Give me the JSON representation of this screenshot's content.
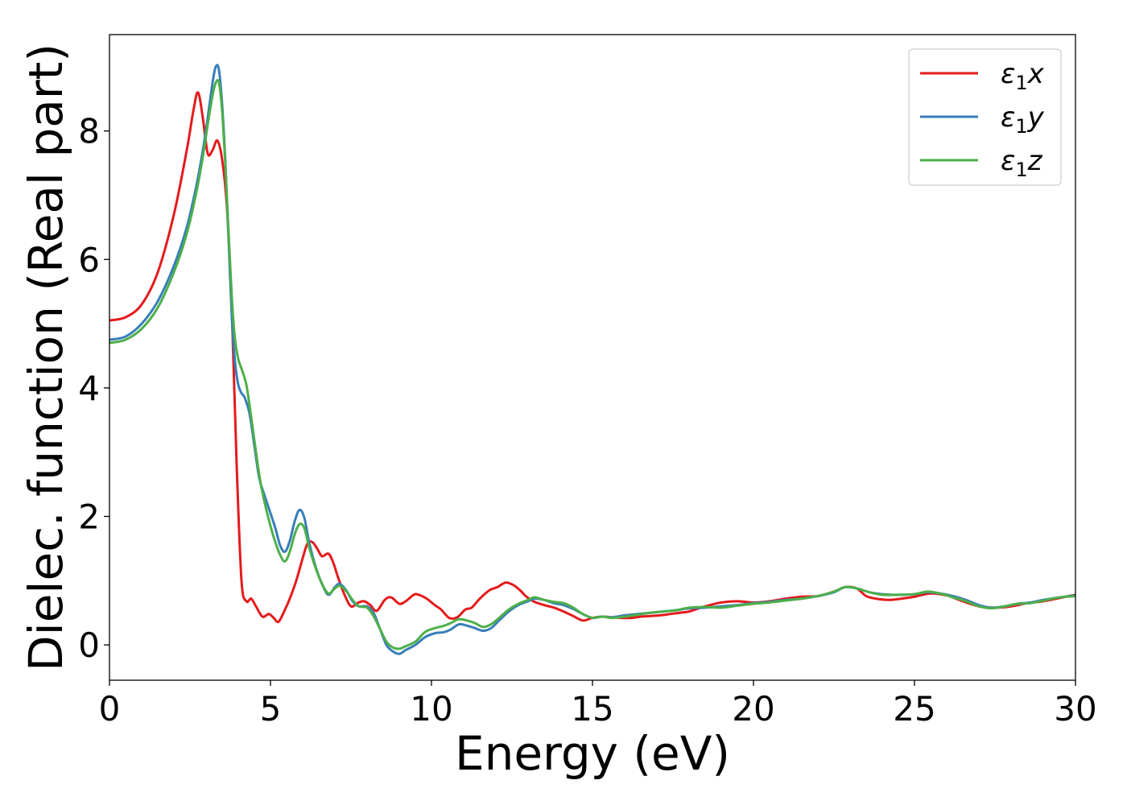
{
  "chart_data": {
    "type": "line",
    "xlabel": "Energy (eV)",
    "ylabel": "Dielec. function (Real part)",
    "xlim": [
      0,
      30
    ],
    "ylim": [
      -0.55,
      9.5
    ],
    "xticks": [
      0,
      5,
      10,
      15,
      20,
      25,
      30
    ],
    "yticks": [
      0,
      2,
      4,
      6,
      8
    ],
    "xtick_labels": [
      "0",
      "5",
      "10",
      "15",
      "20",
      "25",
      "30"
    ],
    "ytick_labels": [
      "0",
      "2",
      "4",
      "6",
      "8"
    ],
    "grid": false,
    "legend_position": "top-right",
    "series": [
      {
        "name": "ε1x",
        "label_base": "ε",
        "label_sub": "1",
        "label_suffix": "x",
        "color": "#e41a1c",
        "x": [
          0,
          0.5,
          1.0,
          1.5,
          2.0,
          2.4,
          2.6,
          2.75,
          2.9,
          3.05,
          3.2,
          3.35,
          3.5,
          3.65,
          3.8,
          3.95,
          4.1,
          4.25,
          4.4,
          4.55,
          4.75,
          4.95,
          5.1,
          5.25,
          5.45,
          5.6,
          5.8,
          6.0,
          6.15,
          6.3,
          6.45,
          6.6,
          6.8,
          6.95,
          7.1,
          7.3,
          7.5,
          7.7,
          7.9,
          8.1,
          8.3,
          8.55,
          8.75,
          9.0,
          9.2,
          9.45,
          9.6,
          9.85,
          10.1,
          10.3,
          10.55,
          10.8,
          11.05,
          11.25,
          11.5,
          11.8,
          12.05,
          12.3,
          12.55,
          12.75,
          12.95,
          13.2,
          13.5,
          13.8,
          14.1,
          14.4,
          14.7,
          15.0,
          15.3,
          15.6,
          15.9,
          16.2,
          16.5,
          16.8,
          17.1,
          17.4,
          17.7,
          18.0,
          18.5,
          19.0,
          19.5,
          20.0,
          20.5,
          21.0,
          21.5,
          22.0,
          22.5,
          22.85,
          23.2,
          23.5,
          23.8,
          24.2,
          24.6,
          25.0,
          25.5,
          26.0,
          26.5,
          27.0,
          27.5,
          28.0,
          28.5,
          29.0,
          29.5,
          30.0
        ],
        "y": [
          5.05,
          5.1,
          5.3,
          5.8,
          6.7,
          7.7,
          8.3,
          8.6,
          8.2,
          7.65,
          7.7,
          7.85,
          7.55,
          6.8,
          5.2,
          2.8,
          1.0,
          0.68,
          0.72,
          0.6,
          0.44,
          0.48,
          0.42,
          0.36,
          0.55,
          0.72,
          1.0,
          1.35,
          1.58,
          1.6,
          1.5,
          1.38,
          1.42,
          1.28,
          1.05,
          0.78,
          0.6,
          0.65,
          0.68,
          0.62,
          0.53,
          0.7,
          0.74,
          0.64,
          0.68,
          0.78,
          0.78,
          0.72,
          0.62,
          0.55,
          0.42,
          0.43,
          0.55,
          0.58,
          0.72,
          0.85,
          0.9,
          0.97,
          0.93,
          0.85,
          0.75,
          0.67,
          0.62,
          0.58,
          0.52,
          0.45,
          0.38,
          0.42,
          0.44,
          0.43,
          0.42,
          0.42,
          0.44,
          0.45,
          0.46,
          0.48,
          0.5,
          0.52,
          0.6,
          0.66,
          0.68,
          0.66,
          0.68,
          0.72,
          0.75,
          0.76,
          0.83,
          0.9,
          0.88,
          0.76,
          0.72,
          0.7,
          0.72,
          0.75,
          0.8,
          0.77,
          0.68,
          0.6,
          0.58,
          0.6,
          0.65,
          0.68,
          0.73,
          0.78
        ]
      },
      {
        "name": "ε1y",
        "label_base": "ε",
        "label_sub": "1",
        "label_suffix": "y",
        "color": "#377eb8",
        "x": [
          0,
          0.5,
          1.0,
          1.5,
          2.0,
          2.4,
          2.7,
          2.9,
          3.05,
          3.2,
          3.3,
          3.4,
          3.5,
          3.6,
          3.7,
          3.8,
          3.9,
          4.0,
          4.1,
          4.2,
          4.35,
          4.5,
          4.65,
          4.8,
          5.0,
          5.15,
          5.3,
          5.45,
          5.6,
          5.75,
          5.9,
          6.05,
          6.2,
          6.4,
          6.6,
          6.8,
          7.0,
          7.15,
          7.35,
          7.55,
          7.75,
          8.0,
          8.2,
          8.4,
          8.6,
          8.8,
          9.0,
          9.2,
          9.5,
          9.8,
          10.1,
          10.4,
          10.6,
          10.85,
          11.1,
          11.35,
          11.6,
          11.85,
          12.1,
          12.4,
          12.7,
          13.0,
          13.2,
          13.5,
          13.8,
          14.1,
          14.4,
          14.7,
          15.0,
          15.3,
          15.6,
          16.0,
          16.4,
          16.8,
          17.2,
          17.6,
          18.0,
          18.5,
          19.0,
          19.5,
          20.0,
          20.5,
          21.0,
          21.5,
          22.0,
          22.5,
          22.85,
          23.2,
          23.6,
          24.0,
          24.5,
          25.0,
          25.4,
          25.8,
          26.2,
          26.6,
          27.0,
          27.4,
          27.8,
          28.2,
          28.6,
          29.0,
          29.5,
          30.0
        ],
        "y": [
          4.75,
          4.8,
          5.0,
          5.35,
          5.9,
          6.5,
          7.15,
          7.7,
          8.2,
          8.75,
          9.0,
          8.95,
          8.4,
          7.5,
          6.3,
          5.1,
          4.4,
          4.05,
          3.92,
          3.85,
          3.6,
          3.1,
          2.6,
          2.35,
          2.05,
          1.82,
          1.55,
          1.45,
          1.62,
          1.92,
          2.1,
          1.98,
          1.6,
          1.22,
          0.95,
          0.78,
          0.9,
          0.95,
          0.85,
          0.68,
          0.6,
          0.6,
          0.5,
          0.25,
          0.0,
          -0.1,
          -0.14,
          -0.08,
          0.0,
          0.12,
          0.18,
          0.2,
          0.24,
          0.32,
          0.3,
          0.26,
          0.22,
          0.26,
          0.38,
          0.52,
          0.62,
          0.68,
          0.72,
          0.7,
          0.65,
          0.62,
          0.56,
          0.48,
          0.42,
          0.44,
          0.43,
          0.46,
          0.48,
          0.5,
          0.52,
          0.54,
          0.57,
          0.58,
          0.6,
          0.62,
          0.65,
          0.67,
          0.7,
          0.72,
          0.76,
          0.82,
          0.9,
          0.88,
          0.82,
          0.79,
          0.78,
          0.79,
          0.82,
          0.8,
          0.76,
          0.7,
          0.62,
          0.58,
          0.6,
          0.64,
          0.66,
          0.7,
          0.74,
          0.77
        ]
      },
      {
        "name": "ε1z",
        "label_base": "ε",
        "label_sub": "1",
        "label_suffix": "z",
        "color": "#4daf4a",
        "x": [
          0,
          0.5,
          1.0,
          1.5,
          2.0,
          2.4,
          2.7,
          2.9,
          3.05,
          3.2,
          3.3,
          3.4,
          3.5,
          3.6,
          3.7,
          3.8,
          3.9,
          4.0,
          4.1,
          4.25,
          4.4,
          4.55,
          4.7,
          4.85,
          5.0,
          5.15,
          5.3,
          5.45,
          5.6,
          5.75,
          5.9,
          6.05,
          6.2,
          6.4,
          6.6,
          6.8,
          7.0,
          7.15,
          7.35,
          7.55,
          7.75,
          8.0,
          8.2,
          8.4,
          8.6,
          8.8,
          9.0,
          9.2,
          9.5,
          9.8,
          10.1,
          10.4,
          10.6,
          10.85,
          11.1,
          11.35,
          11.6,
          11.85,
          12.1,
          12.4,
          12.7,
          13.0,
          13.2,
          13.5,
          13.8,
          14.1,
          14.4,
          14.7,
          15.0,
          15.3,
          15.6,
          16.0,
          16.4,
          16.8,
          17.2,
          17.6,
          18.0,
          18.5,
          19.0,
          19.5,
          20.0,
          20.5,
          21.0,
          21.5,
          22.0,
          22.5,
          22.85,
          23.2,
          23.6,
          24.0,
          24.5,
          25.0,
          25.4,
          25.8,
          26.2,
          26.6,
          27.0,
          27.4,
          27.8,
          28.2,
          28.6,
          29.0,
          29.5,
          30.0
        ],
        "y": [
          4.7,
          4.75,
          4.92,
          5.25,
          5.8,
          6.4,
          7.05,
          7.6,
          8.1,
          8.55,
          8.75,
          8.75,
          8.3,
          7.45,
          6.4,
          5.4,
          4.75,
          4.45,
          4.3,
          4.05,
          3.55,
          3.0,
          2.5,
          2.15,
          1.85,
          1.6,
          1.4,
          1.3,
          1.45,
          1.72,
          1.88,
          1.82,
          1.52,
          1.2,
          0.95,
          0.8,
          0.88,
          0.92,
          0.84,
          0.7,
          0.6,
          0.58,
          0.45,
          0.25,
          0.05,
          -0.04,
          -0.06,
          -0.02,
          0.05,
          0.2,
          0.26,
          0.3,
          0.34,
          0.4,
          0.38,
          0.34,
          0.28,
          0.32,
          0.42,
          0.55,
          0.64,
          0.7,
          0.74,
          0.7,
          0.67,
          0.65,
          0.58,
          0.48,
          0.42,
          0.44,
          0.42,
          0.44,
          0.47,
          0.5,
          0.52,
          0.54,
          0.58,
          0.59,
          0.58,
          0.61,
          0.64,
          0.66,
          0.69,
          0.72,
          0.76,
          0.83,
          0.9,
          0.88,
          0.82,
          0.78,
          0.78,
          0.79,
          0.83,
          0.8,
          0.74,
          0.68,
          0.6,
          0.57,
          0.6,
          0.64,
          0.65,
          0.69,
          0.74,
          0.76
        ]
      }
    ]
  }
}
